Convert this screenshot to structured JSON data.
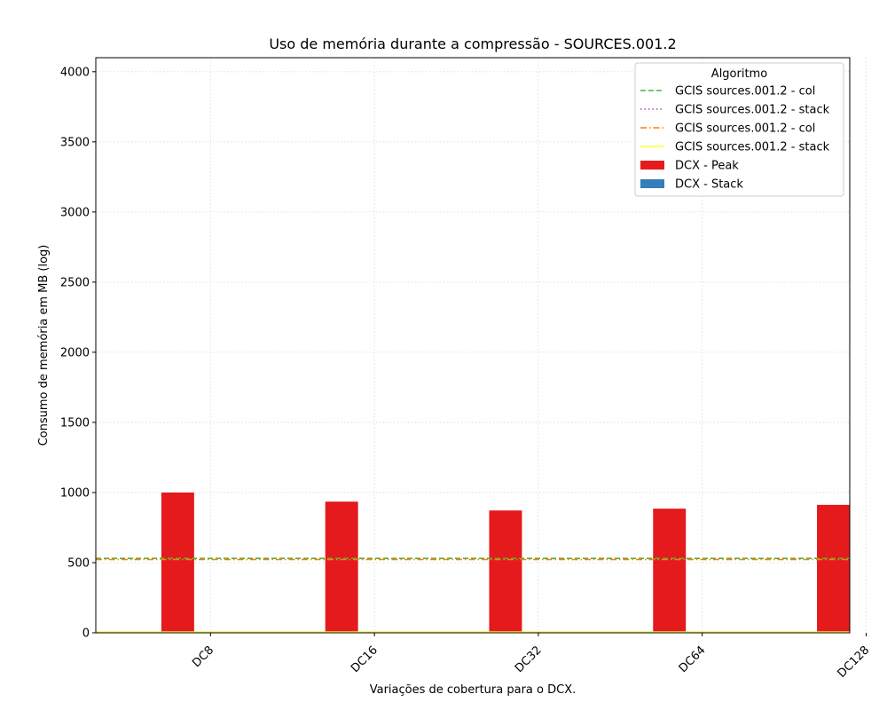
{
  "chart_data": {
    "type": "bar",
    "title": "Uso de memória durante a compressão -  SOURCES.001.2",
    "xlabel": "Variações de cobertura para o DCX.",
    "ylabel": "Consumo de memória em MB (log)",
    "ylim": [
      0,
      4100
    ],
    "yticks": [
      0,
      500,
      1000,
      1500,
      2000,
      2500,
      3000,
      3500,
      4000
    ],
    "categories": [
      "DC8",
      "DC16",
      "DC32",
      "DC64",
      "DC128"
    ],
    "grid": true,
    "series": [
      {
        "name": "DCX - Peak",
        "color": "#e41a1c",
        "values": [
          1000,
          935,
          872,
          885,
          912
        ]
      },
      {
        "name": "DCX - Stack",
        "color": "#377eb8",
        "values": [
          0,
          0,
          0,
          0,
          0
        ]
      }
    ],
    "hlines": [
      {
        "name": "GCIS sources.001.2 - col",
        "color": "#4daf4a",
        "style": "dashed",
        "value": 530
      },
      {
        "name": "GCIS sources.001.2 - stack",
        "color": "#984ea3",
        "style": "dotted",
        "value": 5
      },
      {
        "name": "GCIS sources.001.2 - col",
        "color": "#ff7f00",
        "style": "dashdot",
        "value": 522
      },
      {
        "name": "GCIS sources.001.2 - stack",
        "color": "#ffff33",
        "style": "solid",
        "value": 5
      }
    ],
    "legend": {
      "title": "Algoritmo",
      "placement": "top-right"
    }
  }
}
